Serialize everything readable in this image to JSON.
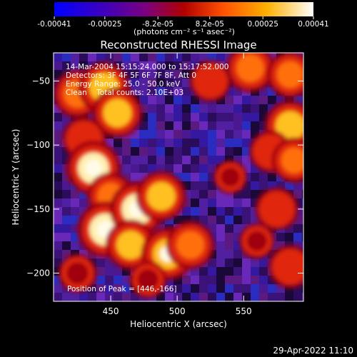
{
  "colorbar": {
    "tick_labels": [
      "-0.00041",
      "-0.00025",
      "-8.2e-05",
      "8.2e-05",
      "0.00025",
      "0.00041"
    ],
    "tick_values": [
      -0.00041,
      -0.00025,
      -8.2e-05,
      8.2e-05,
      0.00025,
      0.00041
    ],
    "range": [
      -0.00041,
      0.00041
    ],
    "units_text": "(photons cm⁻² s⁻¹ asec⁻²)",
    "colors": [
      "#0000ff",
      "#3a00c0",
      "#7a0080",
      "#b00000",
      "#ff5000",
      "#ffb000",
      "#ffffff"
    ]
  },
  "chart_data": {
    "type": "heatmap",
    "title": "Reconstructed RHESSI Image",
    "xlabel": "Heliocentric X (arcsec)",
    "ylabel": "Heliocentric Y (arcsec)",
    "xlim": [
      407,
      595
    ],
    "ylim": [
      -222,
      -28
    ],
    "x_ticks": [
      450,
      500,
      550
    ],
    "y_ticks": [
      -50,
      -100,
      -150,
      -200
    ],
    "annotations": [
      "14-Mar-2004 15:15:24.000 to 15:17:52.000",
      "Detectors: 3F 4F 5F 6F 7F 8F, Att 0",
      "Energy Range: 25.0 - 50.0 keV",
      "Clean    Total counts: 2.10E+03"
    ],
    "peak_label": "Position of Peak = [446,-166]",
    "peak_position": [
      446,
      -166
    ],
    "hot_regions": [
      {
        "x": 425,
        "y": -60,
        "level": 0.75
      },
      {
        "x": 445,
        "y": -55,
        "level": 0.85
      },
      {
        "x": 455,
        "y": -75,
        "level": 0.8
      },
      {
        "x": 430,
        "y": -95,
        "level": 0.6
      },
      {
        "x": 437,
        "y": -118,
        "level": 0.95
      },
      {
        "x": 450,
        "y": -140,
        "level": 0.7
      },
      {
        "x": 446,
        "y": -166,
        "level": 1.0
      },
      {
        "x": 470,
        "y": -150,
        "level": 0.95
      },
      {
        "x": 488,
        "y": -140,
        "level": 0.8
      },
      {
        "x": 465,
        "y": -178,
        "level": 0.8
      },
      {
        "x": 493,
        "y": -185,
        "level": 0.9
      },
      {
        "x": 510,
        "y": -178,
        "level": 0.75
      },
      {
        "x": 425,
        "y": -200,
        "level": 0.45
      },
      {
        "x": 478,
        "y": -205,
        "level": 0.4
      },
      {
        "x": 525,
        "y": -50,
        "level": 0.55
      },
      {
        "x": 555,
        "y": -40,
        "level": 0.75
      },
      {
        "x": 585,
        "y": -45,
        "level": 0.7
      },
      {
        "x": 585,
        "y": -85,
        "level": 0.85
      },
      {
        "x": 570,
        "y": -105,
        "level": 0.55
      },
      {
        "x": 588,
        "y": -112,
        "level": 0.65
      },
      {
        "x": 575,
        "y": -150,
        "level": 0.6
      },
      {
        "x": 585,
        "y": -195,
        "level": 0.6
      },
      {
        "x": 560,
        "y": -175,
        "level": 0.35
      },
      {
        "x": 540,
        "y": -125,
        "level": 0.3
      }
    ]
  },
  "footer": {
    "timestamp": "29-Apr-2022 11:10"
  }
}
